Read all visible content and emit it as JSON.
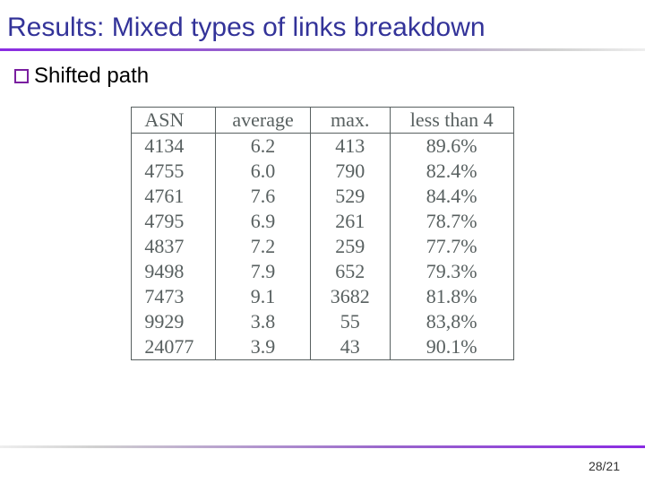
{
  "title": "Results: Mixed types of links breakdown",
  "bullet": {
    "label": "Shifted path"
  },
  "table": {
    "type": "table",
    "columns": [
      "ASN",
      "average",
      "max.",
      "less than 4"
    ],
    "rows": [
      [
        "4134",
        "6.2",
        "413",
        "89.6%"
      ],
      [
        "4755",
        "6.0",
        "790",
        "82.4%"
      ],
      [
        "4761",
        "7.6",
        "529",
        "84.4%"
      ],
      [
        "4795",
        "6.9",
        "261",
        "78.7%"
      ],
      [
        "4837",
        "7.2",
        "259",
        "77.7%"
      ],
      [
        "9498",
        "7.9",
        "652",
        "79.3%"
      ],
      [
        "7473",
        "9.1",
        "3682",
        "81.8%"
      ],
      [
        "9929",
        "3.8",
        "55",
        "83,8%"
      ],
      [
        "24077",
        "3.9",
        "43",
        "90.1%"
      ]
    ],
    "border_color": "#586060",
    "text_color": "#586060",
    "font_family": "Times New Roman",
    "font_size": 22
  },
  "page": "28/21",
  "colors": {
    "title": "#333399",
    "accent_purple": "#8a2be2",
    "bullet_border": "#7a1fa0",
    "background": "#ffffff"
  }
}
